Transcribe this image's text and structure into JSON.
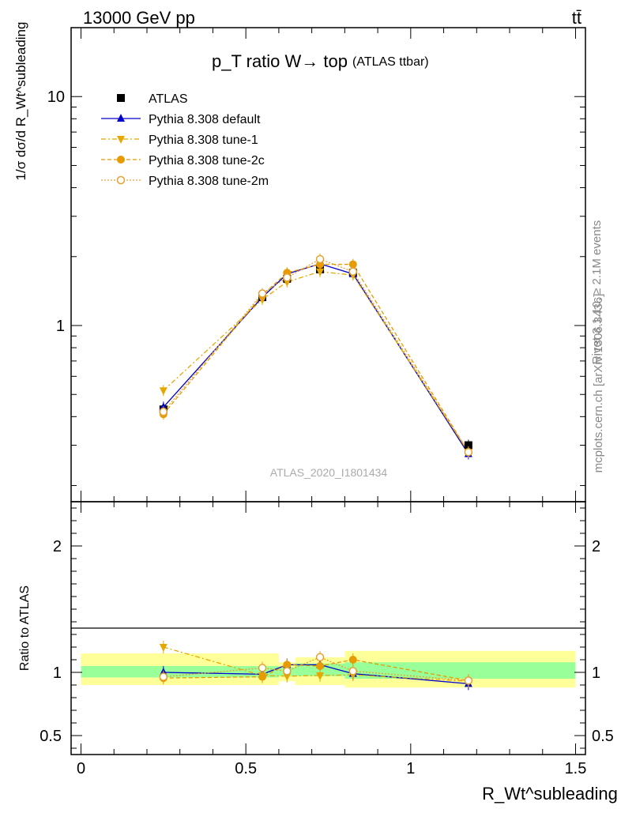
{
  "header": {
    "left": "13000 GeV pp",
    "right": "tt̄"
  },
  "side_labels": {
    "top": "Rivet 3.1.10, ≥ 2.1M events",
    "bottom": "mcplots.cern.ch [arXiv:1306.3436]"
  },
  "analysis_id": "ATLAS_2020_I1801434",
  "chart_data": [
    {
      "type": "line",
      "title": "p_T ratio W→ top",
      "subtitle": "(ATLAS ttbar)",
      "ylabel": "1/σ dσ/d R_Wt^subleading",
      "yscale": "log",
      "ylim": [
        0.17,
        20
      ],
      "xlim": [
        -0.03,
        1.53
      ],
      "y_ticks": [
        "1",
        "10"
      ],
      "legend_position": "top-left",
      "x": [
        0.25,
        0.55,
        0.625,
        0.725,
        0.825,
        1.175
      ],
      "series": [
        {
          "name": "ATLAS",
          "values": [
            0.43,
            1.33,
            1.6,
            1.76,
            1.7,
            0.3
          ],
          "color": "#000000",
          "marker": "square"
        },
        {
          "name": "Pythia 8.308 default",
          "values": [
            0.44,
            1.33,
            1.68,
            1.86,
            1.68,
            0.275
          ],
          "color": "#0000cc",
          "marker": "triangle-up"
        },
        {
          "name": "Pythia 8.308 tune-1",
          "values": [
            0.52,
            1.3,
            1.55,
            1.72,
            1.66,
            0.28
          ],
          "color": "#e6a800",
          "marker": "triangle-down"
        },
        {
          "name": "Pythia 8.308 tune-2c",
          "values": [
            0.41,
            1.36,
            1.7,
            1.85,
            1.85,
            0.28
          ],
          "color": "#e69b00",
          "marker": "circle"
        },
        {
          "name": "Pythia 8.308 tune-2m",
          "values": [
            0.42,
            1.38,
            1.62,
            1.95,
            1.72,
            0.28
          ],
          "color": "#e6a030",
          "marker": "circle-open"
        }
      ]
    },
    {
      "type": "line",
      "ylabel": "Ratio to ATLAS",
      "xlabel": "R_Wt^subleading",
      "ylim": [
        0.35,
        2.35
      ],
      "xlim": [
        -0.03,
        1.53
      ],
      "x_ticks": [
        "0",
        "0.5",
        "1",
        "1.5"
      ],
      "y_ticks": [
        "0.5",
        "1",
        "2"
      ],
      "x": [
        0.25,
        0.55,
        0.625,
        0.725,
        0.825,
        1.175
      ],
      "bands": [
        {
          "x0": 0.0,
          "x1": 0.6,
          "inner": [
            0.96,
            1.05
          ],
          "outer": [
            0.9,
            1.15
          ]
        },
        {
          "x0": 0.6,
          "x1": 0.65,
          "inner": [
            0.97,
            1.04
          ],
          "outer": [
            0.93,
            1.08
          ]
        },
        {
          "x0": 0.65,
          "x1": 0.8,
          "inner": [
            0.97,
            1.07
          ],
          "outer": [
            0.9,
            1.12
          ]
        },
        {
          "x0": 0.8,
          "x1": 1.5,
          "inner": [
            0.95,
            1.08
          ],
          "outer": [
            0.88,
            1.17
          ]
        }
      ],
      "series": [
        {
          "name": "Pythia 8.308 default",
          "values": [
            1.0,
            0.985,
            1.06,
            1.06,
            0.99,
            0.91
          ],
          "color": "#0000cc",
          "marker": "triangle-up"
        },
        {
          "name": "Pythia 8.308 tune-1",
          "values": [
            1.2,
            0.975,
            0.97,
            0.975,
            0.98,
            0.93
          ],
          "color": "#e6a800",
          "marker": "triangle-down"
        },
        {
          "name": "Pythia 8.308 tune-2c",
          "values": [
            0.955,
            0.965,
            1.06,
            1.05,
            1.1,
            0.935
          ],
          "color": "#e69b00",
          "marker": "circle"
        },
        {
          "name": "Pythia 8.308 tune-2m",
          "values": [
            0.965,
            1.035,
            1.01,
            1.12,
            1.01,
            0.935
          ],
          "color": "#e6a030",
          "marker": "circle-open"
        }
      ]
    }
  ]
}
